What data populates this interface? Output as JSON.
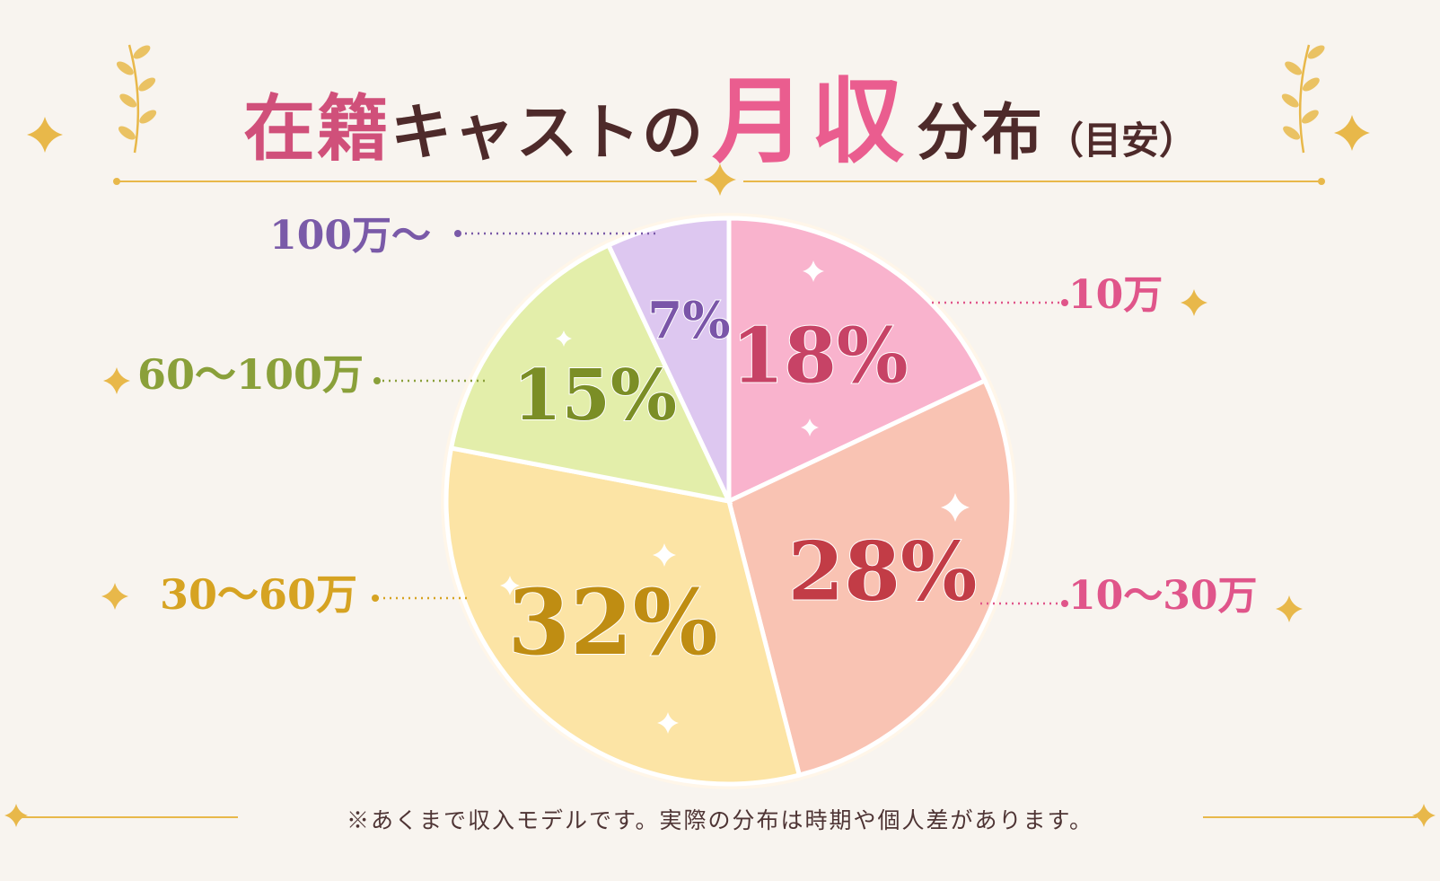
{
  "title": {
    "part1": "在籍",
    "part2": "キャストの",
    "part3": "月収",
    "part4": "分布",
    "part5": "（目安）"
  },
  "footnote": "※あくまで収入モデルです。実際の分布は時期や個人差があります。",
  "colors": {
    "background": "#f8f4ef",
    "gold": "#e8b84a",
    "title_dark": "#4e2a2a",
    "title_pink": "#ea5d8f"
  },
  "chart_data": {
    "type": "pie",
    "start_angle_deg": 0,
    "direction": "clockwise",
    "slices": [
      {
        "label": "10万",
        "value": 18,
        "value_label": "18%",
        "fill": "#f9b3cd",
        "text_color": "#c74366",
        "label_color": "#e0558a"
      },
      {
        "label": "10〜30万",
        "value": 28,
        "value_label": "28%",
        "fill": "#f9c3b3",
        "text_color": "#c23c46",
        "label_color": "#e0558a"
      },
      {
        "label": "30〜60万",
        "value": 32,
        "value_label": "32%",
        "fill": "#fce4a5",
        "text_color": "#bf8d12",
        "label_color": "#d6a322"
      },
      {
        "label": "60〜100万",
        "value": 15,
        "value_label": "15%",
        "fill": "#e3eeaa",
        "text_color": "#7b8e26",
        "label_color": "#8aa03a"
      },
      {
        "label": "100万〜",
        "value": 7,
        "value_label": "7%",
        "fill": "#ddc7f0",
        "text_color": "#7a55a8",
        "label_color": "#7a5aa8"
      }
    ]
  }
}
